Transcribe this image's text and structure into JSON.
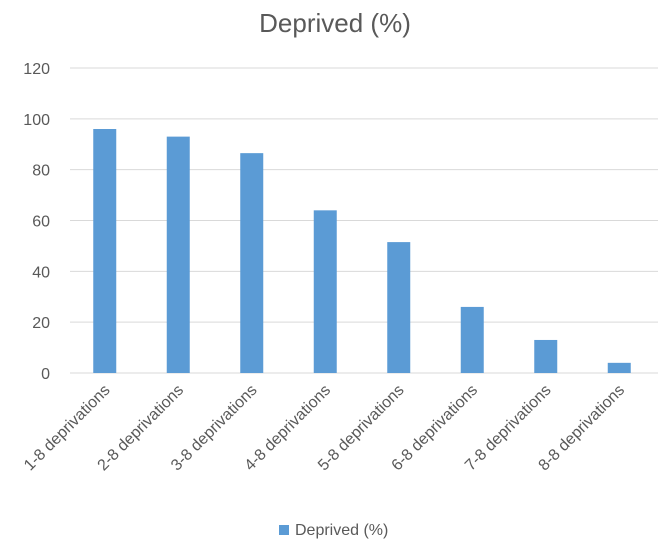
{
  "chart_data": {
    "type": "bar",
    "title": "Deprived (%)",
    "xlabel": "",
    "ylabel": "",
    "categories": [
      "1-8 deprivations",
      "2-8 deprivations",
      "3-8 deprivations",
      "4-8 deprivations",
      "5-8 deprivations",
      "6-8 deprivations",
      "7-8 deprivations",
      "8-8 deprivations"
    ],
    "series": [
      {
        "name": "Deprived (%)",
        "values": [
          96,
          93,
          86.5,
          64,
          51.5,
          26,
          13,
          4
        ]
      }
    ],
    "ylim": [
      0,
      120
    ],
    "yticks": [
      0,
      20,
      40,
      60,
      80,
      100,
      120
    ],
    "grid": true,
    "legend_position": "bottom",
    "colors": {
      "bar": "#5b9bd5",
      "grid": "#d9d9d9",
      "text": "#595959"
    }
  }
}
